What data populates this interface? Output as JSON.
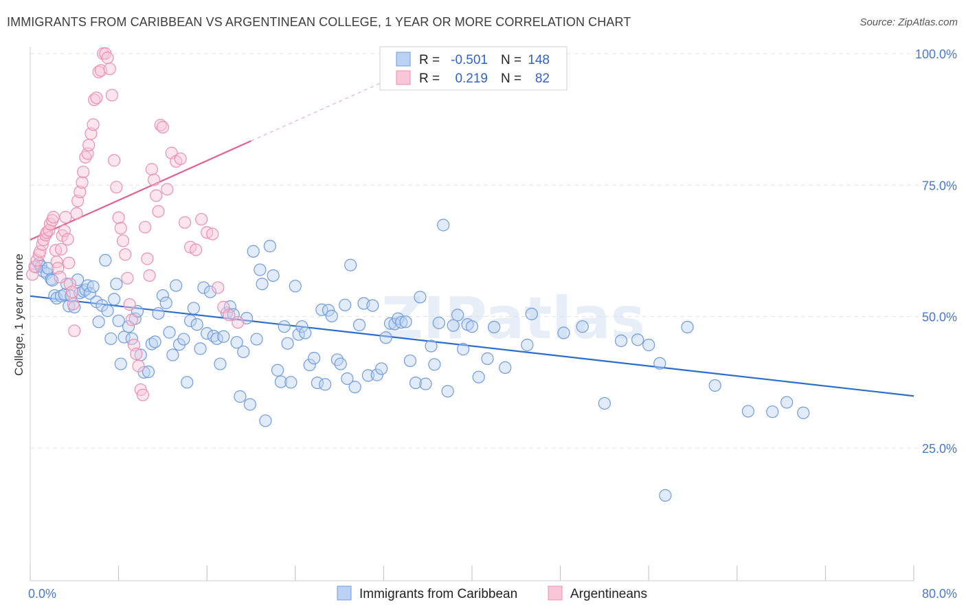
{
  "title": "IMMIGRANTS FROM CARIBBEAN VS ARGENTINEAN COLLEGE, 1 YEAR OR MORE CORRELATION CHART",
  "source": "Source: ZipAtlas.com",
  "watermark": "ZIPatlas",
  "colors": {
    "blue": "#6f9be0",
    "blue_fill": "#bcd2f4",
    "blue_line": "#2a6dd0",
    "pink": "#ec8fae",
    "pink_fill": "#f8c6d6",
    "pink_line": "#e35f8f",
    "grid": "#e3e3e3",
    "axis_text": "#4a78c8"
  },
  "stats": [
    {
      "r_label": "R =",
      "r_value": "-0.501",
      "n_label": "N =",
      "n_value": "148"
    },
    {
      "r_label": "R =",
      "r_value": "0.219",
      "n_label": "N =",
      "n_value": "82"
    }
  ],
  "legend": [
    "Immigrants from Caribbean",
    "Argentineans"
  ],
  "chart_data": {
    "type": "scatter",
    "xlabel": "",
    "ylabel": "College, 1 year or more",
    "xlim": [
      0,
      80
    ],
    "ylim": [
      0,
      105
    ],
    "x_tick_labels": [
      "0.0%",
      "80.0%"
    ],
    "y_ticks": [
      25,
      50,
      75,
      100
    ],
    "y_tick_labels": [
      "25.0%",
      "50.0%",
      "75.0%",
      "100.0%"
    ],
    "grid": true,
    "legend_position": "bottom-center",
    "series": [
      {
        "name": "Immigrants from Caribbean",
        "color": "#6f9be0",
        "trend": {
          "x": [
            0,
            80
          ],
          "y": [
            53.9,
            34.9
          ]
        },
        "points": [
          [
            0.5,
            59.4
          ],
          [
            0.8,
            60.1
          ],
          [
            1.0,
            59.5
          ],
          [
            1.2,
            58.6
          ],
          [
            1.5,
            58.2
          ],
          [
            1.6,
            59.2
          ],
          [
            1.9,
            57.1
          ],
          [
            2.0,
            56.9
          ],
          [
            2.2,
            54.0
          ],
          [
            2.4,
            53.5
          ],
          [
            2.8,
            53.9
          ],
          [
            3.1,
            54.2
          ],
          [
            3.3,
            56.2
          ],
          [
            3.5,
            52.0
          ],
          [
            3.7,
            53.9
          ],
          [
            4.0,
            51.8
          ],
          [
            4.3,
            57.0
          ],
          [
            4.5,
            54.5
          ],
          [
            4.8,
            54.8
          ],
          [
            5.0,
            55.1
          ],
          [
            5.2,
            55.9
          ],
          [
            5.4,
            54.4
          ],
          [
            5.7,
            55.7
          ],
          [
            6.0,
            52.8
          ],
          [
            6.2,
            49.0
          ],
          [
            6.5,
            52.1
          ],
          [
            6.8,
            60.7
          ],
          [
            7.0,
            51.1
          ],
          [
            7.3,
            45.8
          ],
          [
            7.6,
            53.3
          ],
          [
            7.8,
            56.2
          ],
          [
            8.0,
            49.2
          ],
          [
            8.2,
            41.0
          ],
          [
            8.5,
            46.1
          ],
          [
            8.9,
            48.1
          ],
          [
            9.2,
            45.8
          ],
          [
            9.5,
            49.6
          ],
          [
            9.7,
            51.0
          ],
          [
            10.0,
            42.7
          ],
          [
            10.3,
            39.4
          ],
          [
            10.7,
            39.5
          ],
          [
            11.0,
            44.8
          ],
          [
            11.3,
            45.2
          ],
          [
            11.6,
            50.6
          ],
          [
            12.0,
            54.0
          ],
          [
            12.3,
            52.6
          ],
          [
            12.6,
            47.0
          ],
          [
            12.9,
            42.7
          ],
          [
            13.2,
            55.9
          ],
          [
            13.5,
            44.7
          ],
          [
            13.9,
            45.7
          ],
          [
            14.2,
            37.5
          ],
          [
            14.5,
            49.2
          ],
          [
            14.8,
            51.6
          ],
          [
            15.1,
            48.5
          ],
          [
            15.4,
            43.9
          ],
          [
            15.7,
            55.5
          ],
          [
            16.0,
            46.8
          ],
          [
            16.3,
            54.7
          ],
          [
            16.6,
            46.3
          ],
          [
            16.9,
            45.8
          ],
          [
            17.2,
            41.0
          ],
          [
            17.5,
            46.2
          ],
          [
            17.8,
            50.7
          ],
          [
            18.1,
            51.9
          ],
          [
            18.4,
            50.4
          ],
          [
            18.7,
            45.1
          ],
          [
            19.0,
            34.8
          ],
          [
            19.3,
            43.3
          ],
          [
            19.6,
            49.7
          ],
          [
            19.9,
            33.3
          ],
          [
            20.2,
            62.4
          ],
          [
            20.5,
            45.7
          ],
          [
            20.8,
            58.9
          ],
          [
            21.0,
            56.2
          ],
          [
            21.3,
            30.2
          ],
          [
            21.7,
            63.4
          ],
          [
            22.0,
            57.8
          ],
          [
            22.4,
            39.8
          ],
          [
            22.7,
            37.6
          ],
          [
            23.0,
            48.1
          ],
          [
            23.3,
            44.9
          ],
          [
            23.6,
            37.5
          ],
          [
            24.0,
            55.8
          ],
          [
            24.3,
            46.6
          ],
          [
            24.6,
            48.1
          ],
          [
            24.9,
            46.9
          ],
          [
            25.3,
            40.8
          ],
          [
            25.7,
            42.1
          ],
          [
            26.0,
            37.4
          ],
          [
            26.4,
            51.3
          ],
          [
            26.7,
            37.1
          ],
          [
            27.0,
            51.2
          ],
          [
            27.3,
            50.1
          ],
          [
            27.8,
            41.8
          ],
          [
            28.1,
            41.0
          ],
          [
            28.5,
            52.2
          ],
          [
            28.7,
            38.2
          ],
          [
            29.0,
            59.8
          ],
          [
            29.4,
            36.6
          ],
          [
            29.8,
            48.4
          ],
          [
            30.2,
            52.5
          ],
          [
            30.6,
            38.8
          ],
          [
            31.0,
            52.1
          ],
          [
            31.4,
            38.9
          ],
          [
            31.8,
            40.1
          ],
          [
            32.2,
            46.0
          ],
          [
            32.6,
            48.7
          ],
          [
            33.0,
            48.6
          ],
          [
            33.3,
            49.6
          ],
          [
            33.6,
            48.9
          ],
          [
            34.0,
            49.0
          ],
          [
            34.4,
            41.6
          ],
          [
            34.9,
            37.4
          ],
          [
            35.3,
            53.7
          ],
          [
            35.8,
            37.2
          ],
          [
            36.3,
            44.4
          ],
          [
            36.6,
            40.9
          ],
          [
            37.0,
            48.8
          ],
          [
            37.4,
            67.4
          ],
          [
            37.8,
            35.8
          ],
          [
            38.3,
            48.3
          ],
          [
            38.7,
            50.3
          ],
          [
            39.2,
            43.8
          ],
          [
            39.6,
            48.5
          ],
          [
            40.0,
            48.1
          ],
          [
            40.6,
            38.5
          ],
          [
            41.4,
            42.0
          ],
          [
            42.0,
            48.0
          ],
          [
            43.0,
            40.3
          ],
          [
            45.0,
            44.6
          ],
          [
            45.4,
            50.5
          ],
          [
            48.3,
            46.9
          ],
          [
            50.0,
            48.1
          ],
          [
            52.0,
            33.5
          ],
          [
            53.5,
            45.4
          ],
          [
            55.0,
            45.6
          ],
          [
            56.0,
            44.6
          ],
          [
            57.0,
            41.1
          ],
          [
            57.5,
            16.0
          ],
          [
            59.5,
            48.0
          ],
          [
            62.0,
            36.9
          ],
          [
            65.0,
            32.0
          ],
          [
            67.2,
            31.9
          ],
          [
            68.5,
            33.7
          ],
          [
            70.0,
            31.7
          ]
        ]
      },
      {
        "name": "Argentineans",
        "color": "#ec8fae",
        "trend": {
          "x": [
            0,
            20
          ],
          "y": [
            64.6,
            83.4
          ]
        },
        "trend_dashed": {
          "x": [
            20,
            33
          ],
          "y": [
            83.4,
            95.6
          ]
        },
        "points": [
          [
            0.2,
            58.0
          ],
          [
            0.4,
            59.5
          ],
          [
            0.6,
            60.7
          ],
          [
            0.8,
            61.8
          ],
          [
            0.9,
            62.4
          ],
          [
            1.1,
            63.7
          ],
          [
            1.2,
            64.6
          ],
          [
            1.4,
            65.5
          ],
          [
            1.5,
            66.0
          ],
          [
            1.7,
            66.4
          ],
          [
            1.8,
            67.6
          ],
          [
            2.0,
            68.3
          ],
          [
            2.1,
            68.9
          ],
          [
            2.3,
            62.6
          ],
          [
            2.4,
            60.4
          ],
          [
            2.5,
            59.2
          ],
          [
            2.7,
            57.5
          ],
          [
            2.8,
            62.8
          ],
          [
            2.9,
            65.4
          ],
          [
            3.1,
            66.3
          ],
          [
            3.2,
            68.9
          ],
          [
            3.4,
            64.7
          ],
          [
            3.5,
            60.2
          ],
          [
            3.6,
            56.2
          ],
          [
            3.8,
            54.7
          ],
          [
            3.9,
            52.4
          ],
          [
            4.0,
            47.3
          ],
          [
            4.2,
            69.6
          ],
          [
            4.3,
            72.0
          ],
          [
            4.5,
            73.7
          ],
          [
            4.7,
            75.5
          ],
          [
            4.8,
            77.5
          ],
          [
            5.0,
            80.3
          ],
          [
            5.2,
            81.0
          ],
          [
            5.3,
            82.6
          ],
          [
            5.5,
            84.8
          ],
          [
            5.7,
            86.5
          ],
          [
            5.8,
            91.2
          ],
          [
            6.0,
            91.6
          ],
          [
            6.2,
            96.5
          ],
          [
            6.4,
            96.8
          ],
          [
            6.6,
            100.0
          ],
          [
            6.8,
            100.0
          ],
          [
            7.0,
            99.2
          ],
          [
            7.2,
            97.1
          ],
          [
            7.4,
            92.1
          ],
          [
            7.6,
            79.7
          ],
          [
            7.8,
            74.6
          ],
          [
            8.0,
            68.8
          ],
          [
            8.2,
            66.8
          ],
          [
            8.4,
            64.4
          ],
          [
            8.6,
            61.8
          ],
          [
            8.8,
            57.3
          ],
          [
            9.0,
            52.3
          ],
          [
            9.2,
            49.4
          ],
          [
            9.4,
            44.6
          ],
          [
            9.6,
            42.9
          ],
          [
            9.8,
            40.6
          ],
          [
            10.0,
            36.1
          ],
          [
            10.2,
            35.1
          ],
          [
            10.4,
            67.0
          ],
          [
            10.6,
            61.0
          ],
          [
            10.8,
            57.8
          ],
          [
            11.0,
            78.0
          ],
          [
            11.2,
            76.0
          ],
          [
            11.4,
            73.0
          ],
          [
            11.6,
            70.0
          ],
          [
            11.8,
            86.4
          ],
          [
            12.0,
            86.0
          ],
          [
            12.4,
            74.2
          ],
          [
            12.8,
            81.1
          ],
          [
            13.2,
            79.5
          ],
          [
            13.6,
            80.0
          ],
          [
            14.0,
            67.9
          ],
          [
            14.5,
            63.2
          ],
          [
            15.0,
            62.7
          ],
          [
            15.5,
            68.5
          ],
          [
            16.0,
            66.0
          ],
          [
            16.5,
            65.7
          ],
          [
            17.0,
            55.5
          ],
          [
            17.5,
            51.8
          ],
          [
            18.0,
            50.3
          ],
          [
            18.8,
            48.9
          ]
        ]
      }
    ]
  }
}
